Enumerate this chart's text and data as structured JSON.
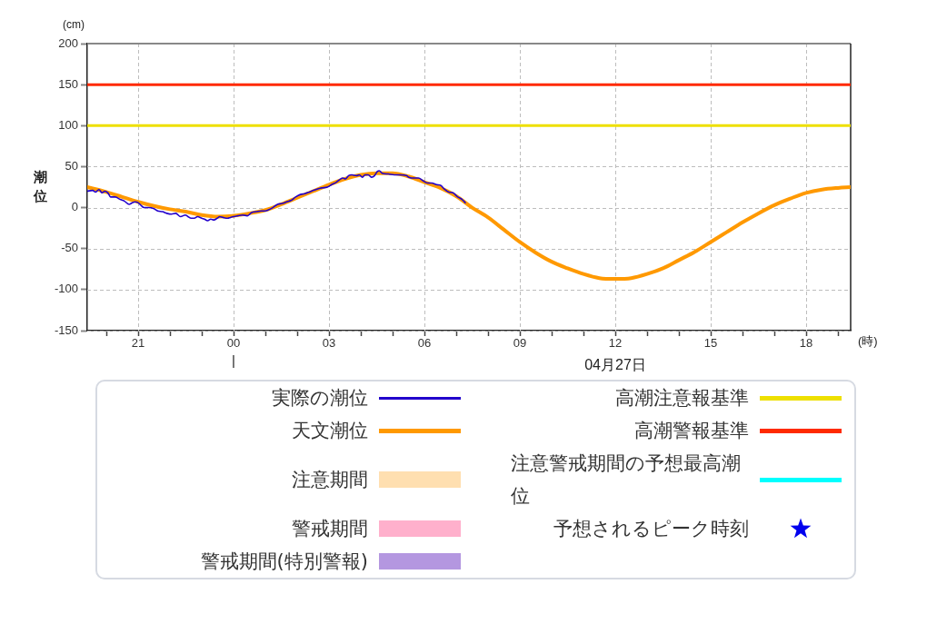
{
  "chart_data": {
    "type": "line",
    "ylabel": "潮位",
    "xlabel": "(時)",
    "annotations": [
      "(cm)",
      "|",
      "04月27日"
    ],
    "xlim": [
      "--04-26T19:24",
      "--04-27T19:24"
    ],
    "xticks": [
      {
        "value": "--04-26T20:00",
        "label": null
      },
      {
        "value": "--04-26T21:00",
        "label": "21"
      },
      {
        "value": "--04-26T22:00",
        "label": null
      },
      {
        "value": "--04-26T23:00",
        "label": null
      },
      {
        "value": "--04-27T00:00",
        "label": "00"
      },
      {
        "value": "--04-27T01:00",
        "label": null
      },
      {
        "value": "--04-27T02:00",
        "label": null
      },
      {
        "value": "--04-27T03:00",
        "label": "03"
      },
      {
        "value": "--04-27T04:00",
        "label": null
      },
      {
        "value": "--04-27T05:00",
        "label": null
      },
      {
        "value": "--04-27T06:00",
        "label": "06"
      },
      {
        "value": "--04-27T07:00",
        "label": null
      },
      {
        "value": "--04-27T08:00",
        "label": null
      },
      {
        "value": "--04-27T09:00",
        "label": "09"
      },
      {
        "value": "--04-27T10:00",
        "label": null
      },
      {
        "value": "--04-27T11:00",
        "label": null
      },
      {
        "value": "--04-27T12:00",
        "label": "12"
      },
      {
        "value": "--04-27T13:00",
        "label": null
      },
      {
        "value": "--04-27T14:00",
        "label": null
      },
      {
        "value": "--04-27T15:00",
        "label": "15"
      },
      {
        "value": "--04-27T16:00",
        "label": null
      },
      {
        "value": "--04-27T17:00",
        "label": null
      },
      {
        "value": "--04-27T18:00",
        "label": "18"
      },
      {
        "value": "--04-27T19:00",
        "label": null
      }
    ],
    "ylim": [
      -150,
      200
    ],
    "yticks": [
      -150,
      -100,
      -50,
      0,
      50,
      100,
      150,
      200
    ],
    "grid": true,
    "legend": "bottom",
    "series": [
      {
        "name": "実際の潮位",
        "color": "#2200cc",
        "x": [
          "--04-26T19:24",
          "--04-26T19:34",
          "--04-26T19:40",
          "--04-26T19:46",
          "--04-26T19:52",
          "--04-26T19:57",
          "--04-26T20:03",
          "--04-26T20:08",
          "--04-26T20:17",
          "--04-26T20:26",
          "--04-26T20:34",
          "--04-26T20:43",
          "--04-26T20:49",
          "--04-26T20:54",
          "--04-26T21:00",
          "--04-26T21:05",
          "--04-26T21:11",
          "--04-26T21:20",
          "--04-26T21:29",
          "--04-26T21:37",
          "--04-26T21:46",
          "--04-26T21:54",
          "--04-26T22:03",
          "--04-26T22:11",
          "--04-26T22:20",
          "--04-26T22:29",
          "--04-26T22:34",
          "--04-26T22:40",
          "--04-26T22:46",
          "--04-26T22:52",
          "--04-26T23:00",
          "--04-26T23:05",
          "--04-26T23:11",
          "--04-26T23:17",
          "--04-26T23:23",
          "--04-26T23:29",
          "--04-26T23:34",
          "--04-26T23:40",
          "--04-26T23:49",
          "--04-26T23:54",
          "--04-27T00:00",
          "--04-27T00:08",
          "--04-27T00:17",
          "--04-27T00:26",
          "--04-27T00:34",
          "--04-27T00:43",
          "--04-27T00:52",
          "--04-27T01:00",
          "--04-27T01:05",
          "--04-27T01:14",
          "--04-27T01:23",
          "--04-27T01:31",
          "--04-27T01:40",
          "--04-27T01:49",
          "--04-27T01:57",
          "--04-27T02:06",
          "--04-27T02:14",
          "--04-27T02:23",
          "--04-27T02:31",
          "--04-27T02:40",
          "--04-27T02:46",
          "--04-27T02:57",
          "--04-27T03:05",
          "--04-27T03:14",
          "--04-27T03:20",
          "--04-27T03:26",
          "--04-27T03:31",
          "--04-27T03:37",
          "--04-27T03:43",
          "--04-27T03:52",
          "--04-27T03:57",
          "--04-27T04:03",
          "--04-27T04:08",
          "--04-27T04:14",
          "--04-27T04:20",
          "--04-27T04:26",
          "--04-27T04:31",
          "--04-27T04:35",
          "--04-27T04:40",
          "--04-27T04:52",
          "--04-27T05:03",
          "--04-27T05:14",
          "--04-27T05:26",
          "--04-27T05:31",
          "--04-27T05:40",
          "--04-27T05:49",
          "--04-27T05:57",
          "--04-27T06:06",
          "--04-27T06:14",
          "--04-27T06:23",
          "--04-27T06:31",
          "--04-27T06:37",
          "--04-27T06:46",
          "--04-27T06:54",
          "--04-27T07:03",
          "--04-27T07:11",
          "--04-27T07:17"
        ],
        "values": [
          20,
          21,
          19,
          22,
          18,
          20,
          18,
          13,
          13,
          10,
          8,
          4,
          6,
          7,
          6,
          3,
          0,
          0,
          -1,
          -4,
          -5,
          -7,
          -8,
          -7,
          -11,
          -9,
          -11,
          -13,
          -13,
          -11,
          -13,
          -14,
          -16,
          -14,
          -15,
          -13,
          -11,
          -12,
          -13,
          -12,
          -11,
          -10,
          -9,
          -10,
          -6,
          -5,
          -4,
          -4,
          -3,
          0,
          4,
          5,
          7,
          9,
          13,
          16,
          17,
          19,
          21,
          23,
          24,
          25,
          28,
          31,
          34,
          36,
          35,
          39,
          40,
          39,
          40,
          37,
          40,
          40,
          37,
          39,
          44,
          45,
          42,
          41,
          40,
          40,
          39,
          37,
          36,
          36,
          33,
          30,
          30,
          28,
          27,
          23,
          19,
          18,
          13,
          10,
          6
        ]
      },
      {
        "name": "天文潮位",
        "color": "#ff9900",
        "x": [
          "--04-26T19:24",
          "--04-26T20:00",
          "--04-26T20:30",
          "--04-26T21:00",
          "--04-26T21:30",
          "--04-26T22:00",
          "--04-26T22:30",
          "--04-26T23:00",
          "--04-26T23:30",
          "--04-27T00:00",
          "--04-27T00:30",
          "--04-27T01:00",
          "--04-27T01:30",
          "--04-27T02:00",
          "--04-27T02:30",
          "--04-27T03:00",
          "--04-27T03:30",
          "--04-27T04:00",
          "--04-27T04:30",
          "--04-27T05:00",
          "--04-27T05:30",
          "--04-27T06:00",
          "--04-27T06:30",
          "--04-27T07:00",
          "--04-27T07:30",
          "--04-27T08:00",
          "--04-27T08:30",
          "--04-27T09:00",
          "--04-27T09:30",
          "--04-27T10:00",
          "--04-27T10:30",
          "--04-27T11:00",
          "--04-27T11:30",
          "--04-27T12:00",
          "--04-27T12:30",
          "--04-27T13:00",
          "--04-27T13:30",
          "--04-27T14:00",
          "--04-27T14:30",
          "--04-27T15:00",
          "--04-27T15:30",
          "--04-27T16:00",
          "--04-27T16:30",
          "--04-27T17:00",
          "--04-27T17:30",
          "--04-27T18:00",
          "--04-27T18:30",
          "--04-27T19:00",
          "--04-27T19:24"
        ],
        "values": [
          25,
          19,
          13,
          7,
          2,
          -2,
          -5,
          -9,
          -11,
          -10,
          -7,
          -3,
          4,
          12,
          20,
          28,
          35,
          40,
          42,
          42,
          38,
          31,
          24,
          14,
          0,
          -12,
          -27,
          -42,
          -55,
          -66,
          -74,
          -81,
          -86,
          -87,
          -86,
          -81,
          -74,
          -64,
          -54,
          -42,
          -30,
          -18,
          -7,
          3,
          11,
          18,
          22,
          24,
          25
        ]
      },
      {
        "name": "注意期間",
        "type": "area",
        "color": "#ffdfb0"
      },
      {
        "name": "警戒期間",
        "type": "area",
        "color": "#ffb0cc"
      },
      {
        "name": "警戒期間(特別警報)",
        "type": "area",
        "color": "#b497e0"
      },
      {
        "name": "注意警戒期間の予想最高潮位",
        "type": "step",
        "color": "#00ffff"
      },
      {
        "name": "予想されるピーク時刻",
        "type": "scatter",
        "marker": "star",
        "color": "#0000ee"
      }
    ],
    "ref_lines": [
      {
        "axis": "y",
        "value": 100,
        "label": "高潮注意報基準",
        "color": "#eee000"
      },
      {
        "axis": "y",
        "value": 150,
        "label": "高潮警報基準",
        "color": "#ff2a00"
      }
    ]
  }
}
